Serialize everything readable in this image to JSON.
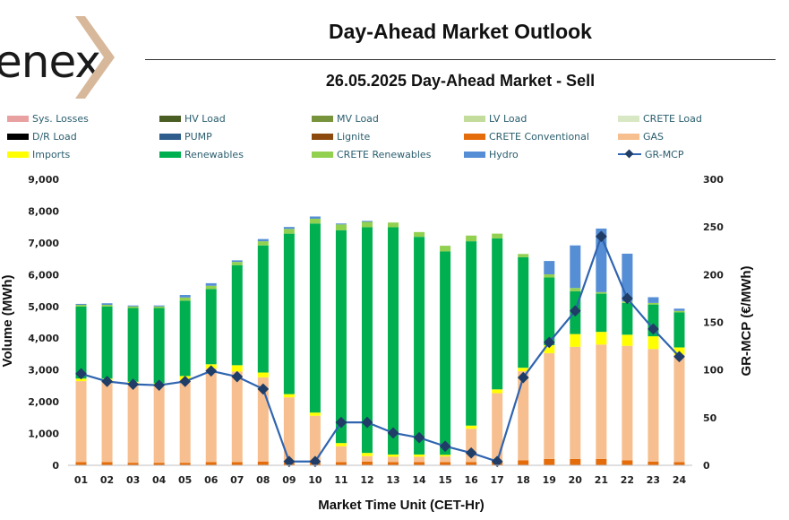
{
  "header": {
    "logo_text": "enex",
    "title": "Day-Ahead Market Outlook",
    "subtitle": "26.05.2025  Day-Ahead Market - Sell"
  },
  "legend": [
    {
      "label": "Sys. Losses",
      "color": "#e8a0a0",
      "kind": "bar"
    },
    {
      "label": "HV Load",
      "color": "#4a5e24",
      "kind": "bar"
    },
    {
      "label": "MV Load",
      "color": "#77933c",
      "kind": "bar"
    },
    {
      "label": "LV Load",
      "color": "#c3dc9b",
      "kind": "bar"
    },
    {
      "label": "CRETE Load",
      "color": "#d8e8c4",
      "kind": "bar"
    },
    {
      "label": "D/R Load",
      "color": "#000000",
      "kind": "bar"
    },
    {
      "label": "PUMP",
      "color": "#2e5c8c",
      "kind": "bar"
    },
    {
      "label": "Lignite",
      "color": "#8c4a0f",
      "kind": "bar"
    },
    {
      "label": "CRETE Conventional",
      "color": "#e46c0a",
      "kind": "bar"
    },
    {
      "label": "GAS",
      "color": "#f7bf8f",
      "kind": "bar"
    },
    {
      "label": "Imports",
      "color": "#ffff00",
      "kind": "bar"
    },
    {
      "label": "Renewables",
      "color": "#00b050",
      "kind": "bar"
    },
    {
      "label": "CRETE Renewables",
      "color": "#92d050",
      "kind": "bar"
    },
    {
      "label": "Hydro",
      "color": "#558ed5",
      "kind": "bar"
    },
    {
      "label": "GR-MCP",
      "color": "#1f3d66",
      "kind": "line"
    }
  ],
  "chart_data": {
    "type": "bar",
    "stacked": true,
    "xlabel": "Market Time Unit (CET-Hr)",
    "ylabel": "Volume (MWh)",
    "y2label": "GR-MCP (€/MWh)",
    "ylim": [
      0,
      9000
    ],
    "y_ticks": [
      "0",
      "1,000",
      "2,000",
      "3,000",
      "4,000",
      "5,000",
      "6,000",
      "7,000",
      "8,000",
      "9,000"
    ],
    "y2lim": [
      0,
      300
    ],
    "y2_ticks": [
      "0",
      "50",
      "100",
      "150",
      "200",
      "250",
      "300"
    ],
    "categories": [
      "01",
      "02",
      "03",
      "04",
      "05",
      "06",
      "07",
      "08",
      "09",
      "10",
      "11",
      "12",
      "13",
      "14",
      "15",
      "16",
      "17",
      "18",
      "19",
      "20",
      "21",
      "22",
      "23",
      "24"
    ],
    "series": [
      {
        "name": "CRETE Conventional",
        "color": "#e46c0a",
        "values": [
          100,
          100,
          80,
          80,
          80,
          100,
          100,
          120,
          80,
          80,
          100,
          120,
          100,
          100,
          100,
          100,
          120,
          160,
          200,
          200,
          200,
          160,
          120,
          100
        ]
      },
      {
        "name": "GAS",
        "color": "#f7bf8f",
        "values": [
          2550,
          2550,
          2470,
          2420,
          2580,
          2950,
          2850,
          2650,
          2060,
          1480,
          500,
          170,
          170,
          170,
          180,
          1050,
          2150,
          2800,
          3330,
          3530,
          3600,
          3600,
          3540,
          3380
        ]
      },
      {
        "name": "Imports",
        "color": "#ffff00",
        "values": [
          80,
          80,
          80,
          80,
          150,
          130,
          200,
          150,
          100,
          100,
          100,
          100,
          70,
          70,
          50,
          100,
          120,
          110,
          250,
          400,
          400,
          350,
          400,
          230
        ]
      },
      {
        "name": "Renewables",
        "color": "#00b050",
        "values": [
          2270,
          2270,
          2320,
          2370,
          2370,
          2370,
          3150,
          4000,
          5050,
          5950,
          6700,
          7100,
          7150,
          6850,
          6400,
          5800,
          4750,
          3480,
          2130,
          1350,
          1200,
          1000,
          1000,
          1100
        ]
      },
      {
        "name": "CRETE Renewables",
        "color": "#92d050",
        "values": [
          50,
          50,
          50,
          50,
          100,
          100,
          100,
          130,
          150,
          150,
          180,
          170,
          150,
          150,
          180,
          180,
          150,
          100,
          100,
          100,
          50,
          50,
          50,
          50
        ]
      },
      {
        "name": "Hydro",
        "color": "#558ed5",
        "values": [
          30,
          50,
          30,
          30,
          80,
          80,
          50,
          70,
          60,
          70,
          30,
          30,
          0,
          0,
          0,
          0,
          0,
          0,
          420,
          1340,
          2000,
          1500,
          180,
          70
        ]
      }
    ],
    "line": {
      "name": "GR-MCP",
      "color": "#2f64b0",
      "marker_color": "#1f3d66",
      "values": [
        96,
        88,
        85,
        84,
        88,
        99,
        93,
        80,
        4,
        4,
        45,
        45,
        34,
        29,
        20,
        13,
        4,
        92,
        129,
        162,
        240,
        175,
        143,
        114
      ]
    }
  }
}
